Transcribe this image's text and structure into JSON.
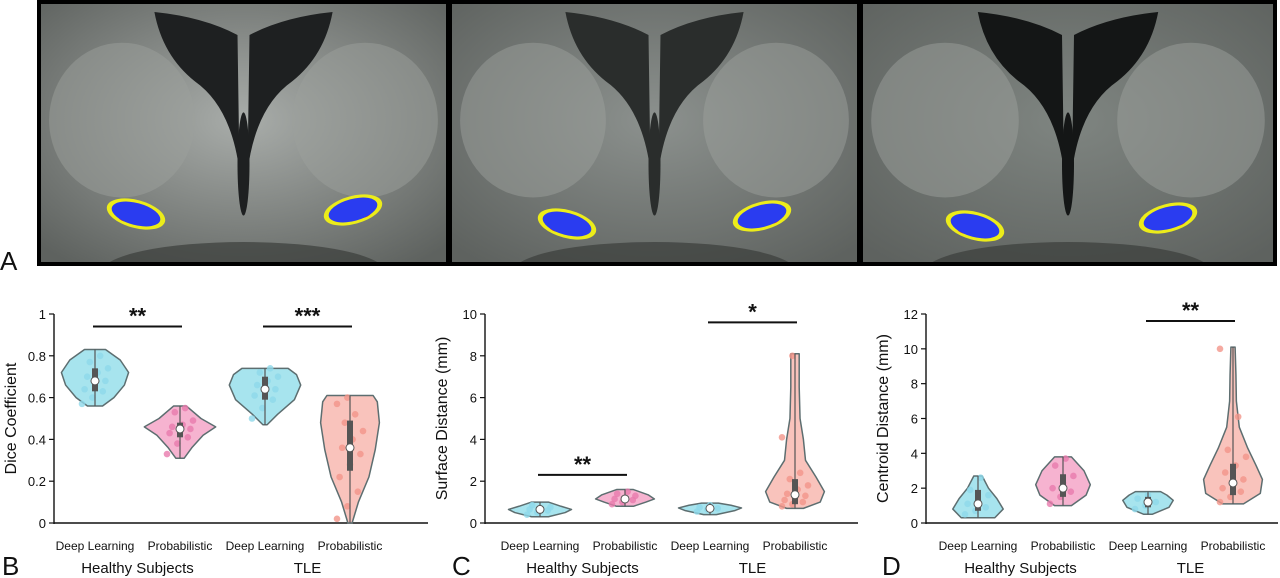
{
  "panel_a": {
    "letter": "A",
    "slices": [
      {
        "name": "slice-1",
        "bg": "#a9adaa",
        "ventricle": "#1e2021"
      },
      {
        "name": "slice-2",
        "bg": "#8c918e",
        "ventricle": "#2a2d2c"
      },
      {
        "name": "slice-3",
        "bg": "#7f8581",
        "ventricle": "#141616"
      }
    ],
    "label_colors": {
      "blue": "#2a3cf0",
      "red": "#ee1a24",
      "yellow": "#ecec1a"
    }
  },
  "colors": {
    "deep": "#a7e4ee",
    "deep_dot": "#8fd8ea",
    "prob_hs": "#f6b3d0",
    "prob_hs_dot": "#e87aac",
    "prob_tle": "#f9c3bc",
    "prob_tle_dot": "#f2958a",
    "outline": "#5d6e70",
    "box": "#555555"
  },
  "chart_data": [
    {
      "type": "violin",
      "panel": "B",
      "ylabel": "Dice Coefficient",
      "ylim": [
        0,
        1
      ],
      "yticks": [
        "0",
        "0.2",
        "0.4",
        "0.6",
        "0.8",
        "1"
      ],
      "yticks_values": [
        0,
        0.2,
        0.4,
        0.6,
        0.8,
        1
      ],
      "categories": [
        "Deep Learning",
        "Probabilistic",
        "Deep Learning",
        "Probabilistic"
      ],
      "groups": [
        "Healthy Subjects",
        "TLE"
      ],
      "violins": [
        {
          "min": 0.56,
          "max": 0.83,
          "q1": 0.63,
          "median": 0.68,
          "q3": 0.74,
          "points": [
            0.57,
            0.6,
            0.63,
            0.64,
            0.66,
            0.68,
            0.7,
            0.72,
            0.74,
            0.77,
            0.8
          ],
          "shape": [
            [
              0.56,
              0.18
            ],
            [
              0.6,
              0.45
            ],
            [
              0.66,
              0.7
            ],
            [
              0.72,
              0.8
            ],
            [
              0.78,
              0.6
            ],
            [
              0.83,
              0.25
            ]
          ]
        },
        {
          "min": 0.31,
          "max": 0.56,
          "q1": 0.41,
          "median": 0.45,
          "q3": 0.48,
          "points": [
            0.33,
            0.38,
            0.41,
            0.43,
            0.44,
            0.45,
            0.46,
            0.47,
            0.49,
            0.53,
            0.55
          ],
          "shape": [
            [
              0.31,
              0.1
            ],
            [
              0.36,
              0.28
            ],
            [
              0.42,
              0.55
            ],
            [
              0.46,
              0.85
            ],
            [
              0.5,
              0.5
            ],
            [
              0.56,
              0.15
            ]
          ]
        },
        {
          "min": 0.47,
          "max": 0.74,
          "q1": 0.59,
          "median": 0.64,
          "q3": 0.7,
          "points": [
            0.5,
            0.55,
            0.59,
            0.61,
            0.63,
            0.64,
            0.66,
            0.68,
            0.7,
            0.72,
            0.74
          ],
          "shape": [
            [
              0.47,
              0.05
            ],
            [
              0.52,
              0.3
            ],
            [
              0.59,
              0.7
            ],
            [
              0.66,
              0.85
            ],
            [
              0.71,
              0.75
            ],
            [
              0.74,
              0.55
            ]
          ]
        },
        {
          "min": 0.0,
          "max": 0.61,
          "q1": 0.25,
          "median": 0.36,
          "q3": 0.49,
          "points": [
            0.02,
            0.08,
            0.15,
            0.22,
            0.28,
            0.33,
            0.36,
            0.4,
            0.44,
            0.48,
            0.52,
            0.57,
            0.6
          ],
          "shape": [
            [
              0.0,
              0.05
            ],
            [
              0.1,
              0.2
            ],
            [
              0.22,
              0.45
            ],
            [
              0.35,
              0.6
            ],
            [
              0.48,
              0.7
            ],
            [
              0.58,
              0.65
            ],
            [
              0.61,
              0.55
            ]
          ]
        }
      ],
      "comparisons": [
        {
          "from": 0,
          "to": 1,
          "label": "**",
          "y": 0.94
        },
        {
          "from": 2,
          "to": 3,
          "label": "***",
          "y": 0.94
        }
      ]
    },
    {
      "type": "violin",
      "panel": "C",
      "ylabel": "Surface Distance (mm)",
      "ylim": [
        0,
        10
      ],
      "yticks": [
        "0",
        "2",
        "4",
        "6",
        "8",
        "10"
      ],
      "yticks_values": [
        0,
        2,
        4,
        6,
        8,
        10
      ],
      "categories": [
        "Deep Learning",
        "Probabilistic",
        "Deep Learning",
        "Probabilistic"
      ],
      "groups": [
        "Healthy Subjects",
        "TLE"
      ],
      "violins": [
        {
          "min": 0.3,
          "max": 1.0,
          "q1": 0.5,
          "median": 0.65,
          "q3": 0.8,
          "points": [
            0.4,
            0.5,
            0.6,
            0.65,
            0.7,
            0.75,
            0.85
          ],
          "shape": [
            [
              0.3,
              0.2
            ],
            [
              0.5,
              0.6
            ],
            [
              0.65,
              0.75
            ],
            [
              0.8,
              0.5
            ],
            [
              1.0,
              0.2
            ]
          ]
        },
        {
          "min": 0.8,
          "max": 1.6,
          "q1": 1.0,
          "median": 1.15,
          "q3": 1.3,
          "points": [
            0.9,
            1.0,
            1.1,
            1.15,
            1.2,
            1.3,
            1.4,
            1.5
          ],
          "shape": [
            [
              0.8,
              0.2
            ],
            [
              1.0,
              0.5
            ],
            [
              1.15,
              0.7
            ],
            [
              1.35,
              0.55
            ],
            [
              1.6,
              0.2
            ]
          ]
        },
        {
          "min": 0.4,
          "max": 0.95,
          "q1": 0.6,
          "median": 0.7,
          "q3": 0.8,
          "points": [
            0.55,
            0.65,
            0.7,
            0.75,
            0.85
          ],
          "shape": [
            [
              0.4,
              0.15
            ],
            [
              0.6,
              0.6
            ],
            [
              0.72,
              0.75
            ],
            [
              0.85,
              0.5
            ],
            [
              0.95,
              0.2
            ]
          ]
        },
        {
          "min": 0.7,
          "max": 8.1,
          "q1": 0.9,
          "median": 1.35,
          "q3": 2.1,
          "points": [
            0.8,
            0.9,
            1.0,
            1.1,
            1.2,
            1.3,
            1.4,
            1.6,
            1.8,
            2.1,
            2.4,
            4.1,
            8.0
          ],
          "shape": [
            [
              0.7,
              0.2
            ],
            [
              1.0,
              0.6
            ],
            [
              1.5,
              0.7
            ],
            [
              2.2,
              0.5
            ],
            [
              3.0,
              0.25
            ],
            [
              4.0,
              0.2
            ],
            [
              5.0,
              0.12
            ],
            [
              6.5,
              0.1
            ],
            [
              8.1,
              0.1
            ]
          ]
        }
      ],
      "comparisons": [
        {
          "from": 0,
          "to": 1,
          "label": "**",
          "y": 2.3
        },
        {
          "from": 2,
          "to": 3,
          "label": "*",
          "y": 9.6
        }
      ]
    },
    {
      "type": "violin",
      "panel": "D",
      "ylabel": "Centroid Distance (mm)",
      "ylim": [
        0,
        12
      ],
      "yticks": [
        "0",
        "2",
        "4",
        "6",
        "8",
        "10",
        "12"
      ],
      "yticks_values": [
        0,
        2,
        4,
        6,
        8,
        10,
        12
      ],
      "categories": [
        "Deep Learning",
        "Probabilistic",
        "Deep Learning",
        "Probabilistic"
      ],
      "groups": [
        "Healthy Subjects",
        "TLE"
      ],
      "violins": [
        {
          "min": 0.3,
          "max": 2.7,
          "q1": 0.7,
          "median": 1.1,
          "q3": 1.9,
          "points": [
            0.5,
            0.7,
            0.9,
            1.1,
            1.3,
            1.6,
            1.9,
            2.6
          ],
          "shape": [
            [
              0.3,
              0.4
            ],
            [
              0.8,
              0.6
            ],
            [
              1.4,
              0.45
            ],
            [
              2.0,
              0.25
            ],
            [
              2.7,
              0.1
            ]
          ]
        },
        {
          "min": 1.0,
          "max": 3.8,
          "q1": 1.5,
          "median": 2.0,
          "q3": 2.8,
          "points": [
            1.1,
            1.5,
            1.8,
            2.0,
            2.3,
            2.7,
            3.3,
            3.7
          ],
          "shape": [
            [
              1.0,
              0.2
            ],
            [
              1.6,
              0.55
            ],
            [
              2.2,
              0.65
            ],
            [
              3.0,
              0.5
            ],
            [
              3.8,
              0.2
            ]
          ]
        },
        {
          "min": 0.5,
          "max": 1.8,
          "q1": 0.9,
          "median": 1.2,
          "q3": 1.5,
          "points": [
            0.8,
            1.0,
            1.2,
            1.4,
            1.6
          ],
          "shape": [
            [
              0.5,
              0.1
            ],
            [
              0.9,
              0.5
            ],
            [
              1.3,
              0.6
            ],
            [
              1.6,
              0.45
            ],
            [
              1.8,
              0.3
            ]
          ]
        },
        {
          "min": 1.1,
          "max": 10.1,
          "q1": 1.6,
          "median": 2.3,
          "q3": 3.4,
          "points": [
            1.2,
            1.5,
            1.8,
            2.0,
            2.2,
            2.5,
            2.9,
            3.3,
            3.8,
            4.2,
            6.1,
            10.0
          ],
          "shape": [
            [
              1.1,
              0.25
            ],
            [
              1.7,
              0.65
            ],
            [
              2.5,
              0.7
            ],
            [
              3.3,
              0.55
            ],
            [
              4.3,
              0.35
            ],
            [
              5.5,
              0.15
            ],
            [
              7.0,
              0.08
            ],
            [
              8.5,
              0.07
            ],
            [
              10.1,
              0.05
            ]
          ]
        }
      ],
      "comparisons": [
        {
          "from": 2,
          "to": 3,
          "label": "**",
          "y": 11.6
        }
      ]
    }
  ]
}
